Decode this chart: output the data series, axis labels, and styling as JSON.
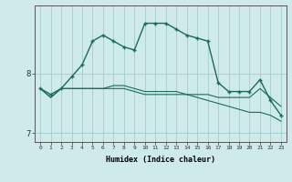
{
  "xlabel": "Humidex (Indice chaleur)",
  "background_color": "#ceeaea",
  "grid_color": "#aad0d0",
  "line_color": "#1a6b5a",
  "x_values": [
    0,
    1,
    2,
    3,
    4,
    5,
    6,
    7,
    8,
    9,
    10,
    11,
    12,
    13,
    14,
    15,
    16,
    17,
    18,
    19,
    20,
    21,
    22,
    23
  ],
  "line1_y": [
    7.75,
    7.65,
    7.75,
    7.95,
    8.15,
    8.55,
    8.65,
    8.55,
    8.45,
    8.4,
    8.85,
    8.85,
    8.85,
    8.75,
    8.65,
    8.6,
    8.55,
    7.85,
    7.7,
    7.7,
    7.7,
    7.9,
    7.55,
    7.3
  ],
  "line2_y": [
    7.75,
    7.6,
    7.75,
    7.75,
    7.75,
    7.75,
    7.75,
    7.75,
    7.75,
    7.7,
    7.65,
    7.65,
    7.65,
    7.65,
    7.65,
    7.65,
    7.65,
    7.6,
    7.6,
    7.6,
    7.6,
    7.75,
    7.6,
    7.45
  ],
  "line3_y": [
    7.75,
    7.6,
    7.75,
    7.75,
    7.75,
    7.75,
    7.75,
    7.8,
    7.8,
    7.75,
    7.7,
    7.7,
    7.7,
    7.7,
    7.65,
    7.6,
    7.55,
    7.5,
    7.45,
    7.4,
    7.35,
    7.35,
    7.3,
    7.2
  ],
  "ylim": [
    6.85,
    9.15
  ],
  "yticks": [
    7,
    8
  ],
  "xlim": [
    -0.5,
    23.5
  ]
}
